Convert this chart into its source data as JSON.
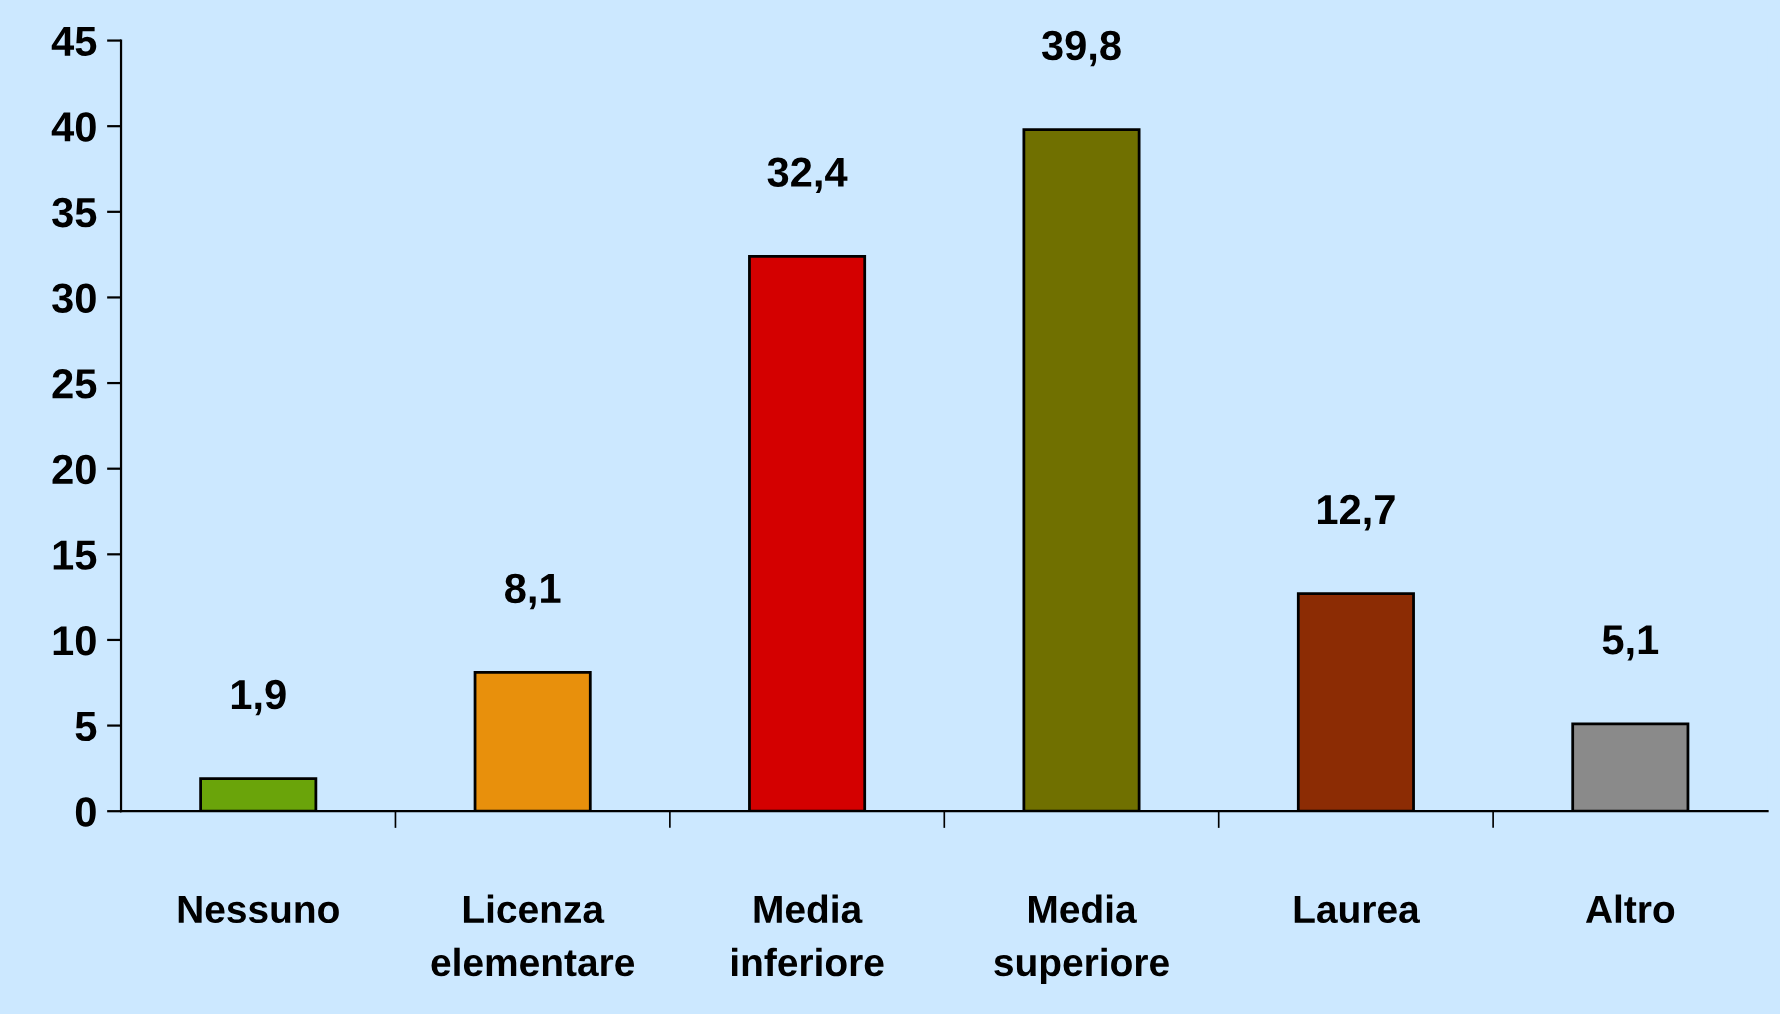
{
  "chart_data": {
    "type": "bar",
    "categories": [
      "Nessuno",
      "Licenza\nelementare",
      "Media\ninferiore",
      "Media\nsuperiore",
      "Laurea",
      "Altro"
    ],
    "values": [
      1.9,
      8.1,
      32.4,
      39.8,
      12.7,
      5.1
    ],
    "colors": [
      "#6aa40a",
      "#e8900c",
      "#d40000",
      "#707000",
      "#8c2c04",
      "#8a8a8a"
    ],
    "value_labels": [
      "1,9",
      "8,1",
      "32,4",
      "39,8",
      "12,7",
      "5,1"
    ],
    "ylim": [
      0,
      45
    ],
    "yticks": [
      0,
      5,
      10,
      15,
      20,
      25,
      30,
      35,
      40,
      45
    ],
    "grid": false,
    "legend": false
  }
}
